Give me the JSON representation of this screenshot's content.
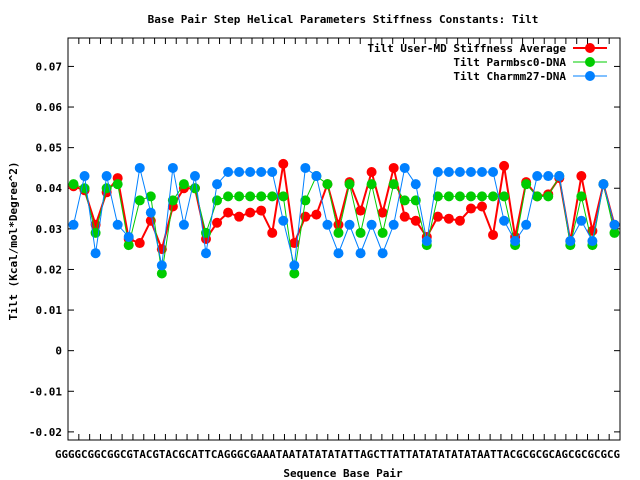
{
  "chart_data": {
    "type": "line",
    "title": "Base Pair Step Helical Parameters Stiffness Constants: Tilt",
    "xlabel": "Sequence Base Pair",
    "ylabel": "Tilt (Kcal/mol*Degree^2)",
    "ylim": [
      -0.022,
      0.077
    ],
    "yticks": [
      -0.02,
      -0.01,
      0,
      0.01,
      0.02,
      0.03,
      0.04,
      0.05,
      0.06,
      0.07
    ],
    "ytick_labels": [
      "-0.02",
      "-0.01",
      "0",
      "0.01",
      "0.02",
      "0.03",
      "0.04",
      "0.05",
      "0.06",
      "0.07"
    ],
    "x_start_label": "G",
    "x_end_label": "G",
    "x_tick_labels": "GGGGCGGCGGCGTACGTACGCATTCAGGGCGAAATAATATATATATTAGCTTATTATATATATATAATTACGCGCGCAGCGCGCGCG",
    "legend_position": "top-right",
    "grid": false,
    "x": [
      1,
      2,
      3,
      4,
      5,
      6,
      7,
      8,
      9,
      10,
      11,
      12,
      13,
      14,
      15,
      16,
      17,
      18,
      19,
      20,
      21,
      22,
      23,
      24,
      25,
      26,
      27,
      28,
      29,
      30,
      31,
      32,
      33,
      34,
      35,
      36,
      37,
      38,
      39,
      40,
      41,
      42,
      43,
      44,
      45,
      46,
      47,
      48,
      49,
      50
    ],
    "series": [
      {
        "name": "Tilt User-MD Stiffness Average",
        "color": "#ff0000",
        "values": [
          0.0405,
          0.0395,
          0.031,
          0.039,
          0.0425,
          0.0275,
          0.0265,
          0.032,
          0.025,
          0.0355,
          0.04,
          0.04,
          0.0275,
          0.0315,
          0.034,
          0.033,
          0.034,
          0.0345,
          0.029,
          0.046,
          0.0265,
          0.033,
          0.0335,
          0.041,
          0.031,
          0.0415,
          0.0345,
          0.044,
          0.034,
          0.045,
          0.033,
          0.032,
          0.028,
          0.033,
          0.0325,
          0.032,
          0.035,
          0.0355,
          0.0285,
          0.0455,
          0.028,
          0.0415,
          0.038,
          0.0385,
          0.0425,
          0.027,
          0.043,
          0.0295,
          0.041,
          0.031
        ]
      },
      {
        "name": "Tilt Parmbsc0-DNA",
        "color": "#00cc00",
        "values": [
          0.041,
          0.04,
          0.029,
          0.04,
          0.041,
          0.026,
          0.037,
          0.038,
          0.019,
          0.037,
          0.041,
          0.04,
          0.029,
          0.037,
          0.038,
          0.038,
          0.038,
          0.038,
          0.038,
          0.038,
          0.019,
          0.037,
          0.043,
          0.041,
          0.029,
          0.041,
          0.029,
          0.041,
          0.029,
          0.041,
          0.037,
          0.037,
          0.026,
          0.038,
          0.038,
          0.038,
          0.038,
          0.038,
          0.038,
          0.038,
          0.026,
          0.041,
          0.038,
          0.038,
          0.043,
          0.026,
          0.038,
          0.026,
          0.041,
          0.029
        ]
      },
      {
        "name": "Tilt Charmm27-DNA",
        "color": "#0080ff",
        "values": [
          0.031,
          0.043,
          0.024,
          0.043,
          0.031,
          0.028,
          0.045,
          0.034,
          0.021,
          0.045,
          0.031,
          0.043,
          0.024,
          0.041,
          0.044,
          0.044,
          0.044,
          0.044,
          0.044,
          0.032,
          0.021,
          0.045,
          0.043,
          0.031,
          0.024,
          0.031,
          0.024,
          0.031,
          0.024,
          0.031,
          0.045,
          0.041,
          0.027,
          0.044,
          0.044,
          0.044,
          0.044,
          0.044,
          0.044,
          0.032,
          0.027,
          0.031,
          0.043,
          0.043,
          0.043,
          0.027,
          0.032,
          0.027,
          0.041,
          0.031
        ]
      }
    ]
  }
}
